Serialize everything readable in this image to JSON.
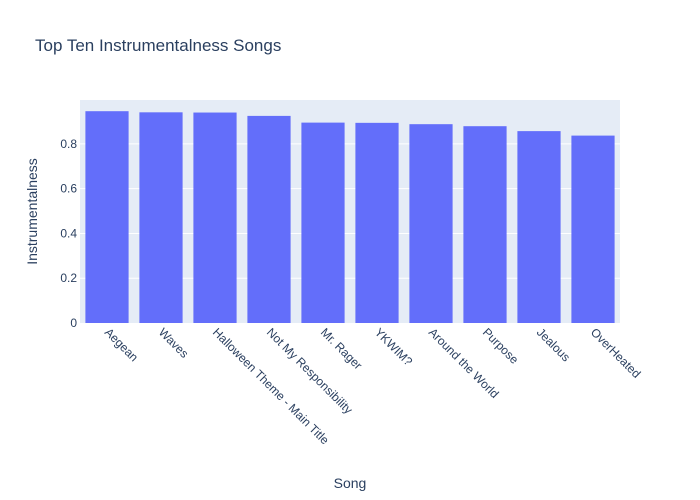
{
  "chart_data": {
    "type": "bar",
    "title": "Top Ten Instrumentalness Songs",
    "xlabel": "Song",
    "ylabel": "Instrumentalness",
    "categories": [
      "Aegean",
      "Waves",
      "Halloween Theme - Main Title",
      "Not My Responsibility",
      "Mr. Rager",
      "YKWIM?",
      "Around the World",
      "Purpose",
      "Jealous",
      "OverHeated"
    ],
    "values": [
      0.946,
      0.941,
      0.94,
      0.925,
      0.895,
      0.894,
      0.888,
      0.879,
      0.857,
      0.837
    ],
    "ylim": [
      0,
      0.996
    ],
    "yticks": [
      0,
      0.2,
      0.4,
      0.6,
      0.8
    ],
    "ytick_labels": [
      "0",
      "0.2",
      "0.4",
      "0.6",
      "0.8"
    ],
    "grid": true,
    "colors": {
      "bar": "#636efa",
      "plot_bg": "#e5ecf6",
      "grid": "#ffffff",
      "text": "#2a3f5f"
    }
  }
}
